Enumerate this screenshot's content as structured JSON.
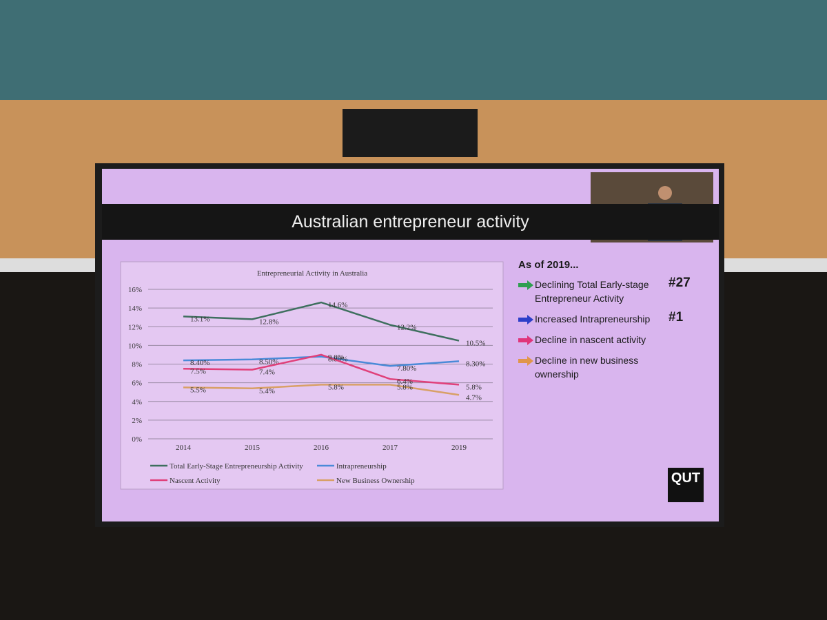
{
  "slide": {
    "title": "Australian entrepreneur activity",
    "heading": "As of 2019...",
    "bullets": [
      {
        "text": "Declining Total Early-stage Entrepreneur Activity",
        "rank": "#27",
        "color": "#2f9e4f"
      },
      {
        "text": "Increased Intrapreneurship",
        "rank": "#1",
        "color": "#2d3fc9"
      },
      {
        "text": "Decline in nascent activity",
        "color": "#e0357a"
      },
      {
        "text": "Decline in new business ownership",
        "color": "#e0964a"
      }
    ],
    "logo": "QUT"
  },
  "chart_data": {
    "type": "line",
    "title": "Entrepreneurial Activity in Australia",
    "categories": [
      "2014",
      "2015",
      "2016",
      "2017",
      "2019"
    ],
    "ylim": [
      0,
      16
    ],
    "yticks": [
      {
        "value": 0,
        "label": "0%"
      },
      {
        "value": 2,
        "label": "2%"
      },
      {
        "value": 4,
        "label": "4%"
      },
      {
        "value": 6,
        "label": "6%"
      },
      {
        "value": 8,
        "label": "8%"
      },
      {
        "value": 10,
        "label": "10%"
      },
      {
        "value": 12,
        "label": "12%"
      },
      {
        "value": 14,
        "label": "14%"
      },
      {
        "value": 16,
        "label": "16%"
      }
    ],
    "grid": true,
    "series": [
      {
        "name": "Total Early-Stage Entrepreneurship Activity",
        "color": "#3e6f5e",
        "values": [
          13.1,
          12.8,
          14.6,
          12.2,
          10.5
        ],
        "value_labels": [
          "13.1%",
          "12.8%",
          "14.6%",
          "12.2%",
          "10.5%"
        ]
      },
      {
        "name": "Intrapreneurship",
        "color": "#4a8ad8",
        "values": [
          8.4,
          8.5,
          8.8,
          7.8,
          8.3
        ],
        "value_labels": [
          "8.40%",
          "8.50%",
          "8.80%",
          "7.80%",
          "8.30%"
        ]
      },
      {
        "name": "Nascent Activity",
        "color": "#e0407a",
        "values": [
          7.5,
          7.4,
          9.0,
          6.4,
          5.8
        ],
        "value_labels": [
          "7.5%",
          "7.4%",
          "9.0%",
          "6.4%",
          "5.8%"
        ]
      },
      {
        "name": "New Business Ownership",
        "color": "#d8a066",
        "values": [
          5.5,
          5.4,
          5.8,
          5.8,
          4.7
        ],
        "value_labels": [
          "5.5%",
          "5.4%",
          "5.8%",
          "5.8%",
          "4.7%"
        ]
      }
    ]
  }
}
